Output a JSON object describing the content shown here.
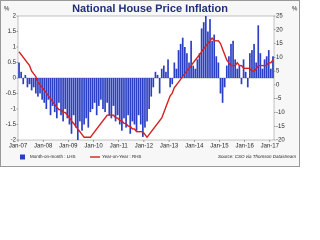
{
  "chart_data": {
    "type": "bar_line",
    "title": "National House Price Inflation",
    "y_label": "%",
    "y2_label": "%",
    "source": "Source: CSO via Thomson Datastream",
    "categories": [
      "Jan-07",
      null,
      null,
      null,
      null,
      null,
      null,
      null,
      null,
      null,
      null,
      null,
      "Jan-08",
      null,
      null,
      null,
      null,
      null,
      null,
      null,
      null,
      null,
      null,
      null,
      "Jan-09",
      null,
      null,
      null,
      null,
      null,
      null,
      null,
      null,
      null,
      null,
      null,
      "Jan-10",
      null,
      null,
      null,
      null,
      null,
      null,
      null,
      null,
      null,
      null,
      null,
      "Jan-11",
      null,
      null,
      null,
      null,
      null,
      null,
      null,
      null,
      null,
      null,
      null,
      "Jan-12",
      null,
      null,
      null,
      null,
      null,
      null,
      null,
      null,
      null,
      null,
      null,
      "Jan-13",
      null,
      null,
      null,
      null,
      null,
      null,
      null,
      null,
      null,
      null,
      null,
      "Jan-14",
      null,
      null,
      null,
      null,
      null,
      null,
      null,
      null,
      null,
      null,
      null,
      "Jan-15",
      null,
      null,
      null,
      null,
      null,
      null,
      null,
      null,
      null,
      null,
      null,
      "Jan-16",
      null,
      null,
      null,
      null,
      null,
      null,
      null,
      null,
      null,
      null,
      null,
      "Jan-17",
      null
    ],
    "series": [
      {
        "name": "Month-on-month : LHS",
        "color": "#2b3fc4",
        "type": "bar",
        "values": [
          0.5,
          0.2,
          -0.2,
          0.1,
          -0.3,
          -0.2,
          -0.4,
          -0.3,
          -0.5,
          -0.6,
          -0.5,
          -0.7,
          -0.8,
          -1,
          -0.7,
          -1.2,
          -0.9,
          -1.1,
          -1.3,
          -0.8,
          -1.2,
          -1.4,
          -1,
          -1.3,
          -1.5,
          -1.8,
          -1.2,
          -1.6,
          -2,
          -1.4,
          -1.7,
          -1.5,
          -1.3,
          -1.6,
          -1.1,
          -1,
          -0.8,
          -1.2,
          -0.9,
          -0.7,
          -1,
          -1.1,
          -0.8,
          -1.2,
          -1.3,
          -0.9,
          -1.4,
          -1.2,
          -1.5,
          -1.7,
          -1.3,
          -1.6,
          -1.2,
          -1.8,
          -1.4,
          -1.5,
          -1.7,
          -1.2,
          -1.5,
          -1.9,
          -1.6,
          -1.4,
          -1,
          -0.6,
          -0.3,
          0.2,
          0.1,
          -0.5,
          0.3,
          0.4,
          0.2,
          0.6,
          -0.3,
          -0.2,
          0.5,
          0.3,
          0.9,
          1.1,
          1.3,
          1,
          0.8,
          0.5,
          1.2,
          0.4,
          0.3,
          0.6,
          0.8,
          1.6,
          1.8,
          2,
          1.5,
          1.9,
          1.2,
          1.4,
          0.7,
          0.5,
          -0.5,
          -0.8,
          -0.3,
          0.4,
          0.7,
          1.1,
          1.2,
          0.6,
          0.3,
          0.4,
          -0.2,
          0.6,
          0.2,
          -0.3,
          0.8,
          0.9,
          1.1,
          0.5,
          1.7,
          0.8,
          0.3,
          0.6,
          0.7,
          0.9,
          0.3,
          0.7
        ]
      },
      {
        "name": "Year-on-Year : RHS",
        "color": "#d62020",
        "type": "line",
        "axis": "y2",
        "values": [
          12,
          11,
          10,
          9,
          8,
          7,
          5,
          4,
          3,
          1,
          0,
          -1,
          -2,
          -3,
          -4,
          -5,
          -6,
          -7,
          -8,
          -9,
          -9,
          -10,
          -10,
          -11,
          -12,
          -13,
          -14,
          -15,
          -16,
          -17,
          -18,
          -19,
          -19,
          -19,
          -19,
          -18,
          -17,
          -16,
          -15,
          -14,
          -13,
          -12,
          -11,
          -11,
          -11,
          -11,
          -12,
          -12,
          -13,
          -13,
          -14,
          -14,
          -15,
          -15,
          -16,
          -16,
          -17,
          -17,
          -17,
          -17,
          -18,
          -19,
          -18,
          -17,
          -16,
          -15,
          -14,
          -13,
          -12,
          -10,
          -8,
          -6,
          -4,
          -3,
          -1,
          0,
          1,
          2,
          3,
          4,
          5,
          6,
          7,
          8,
          9,
          10,
          11,
          12,
          13,
          14,
          15,
          16,
          17,
          16,
          16,
          16,
          15,
          13,
          11,
          9,
          8,
          7,
          7,
          7,
          8,
          7,
          7,
          6,
          6,
          6,
          6,
          5,
          5,
          6,
          7,
          7,
          7,
          7,
          7,
          8,
          8,
          9
        ]
      }
    ],
    "ylim": [
      -2,
      2
    ],
    "yticks": [
      2,
      1.5,
      1,
      0.5,
      0,
      -0.5,
      -1,
      -1.5,
      -2
    ],
    "y2lim": [
      -20,
      25
    ],
    "y2ticks": [
      25,
      20,
      15,
      10,
      5,
      0,
      -5,
      -10,
      -15,
      -20
    ],
    "grid": false
  }
}
